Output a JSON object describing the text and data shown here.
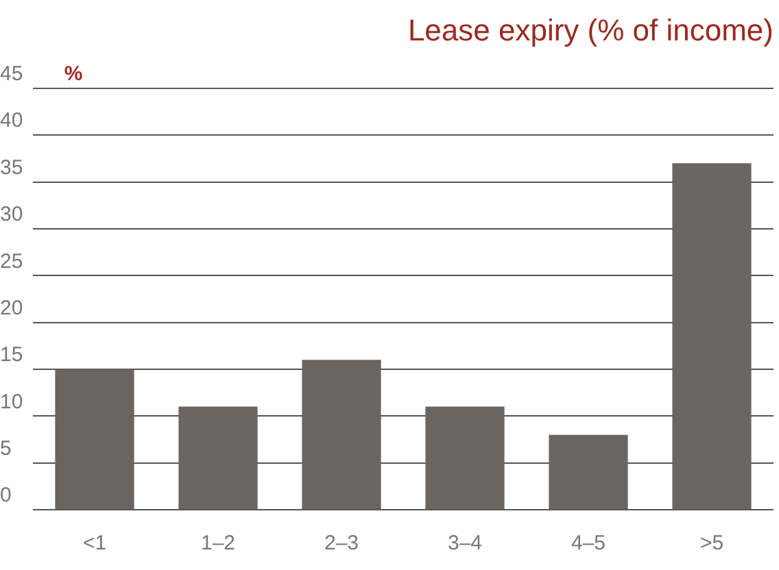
{
  "chart_data": {
    "type": "bar",
    "title": "Lease expiry (% of income)",
    "ylabel": "%",
    "categories": [
      "<1",
      "1–2",
      "2–3",
      "3–4",
      "4–5",
      ">5"
    ],
    "values": [
      15,
      11,
      16,
      11,
      8,
      37
    ],
    "color": "#6b6561",
    "ylim": [
      0,
      45
    ],
    "yticks": [
      0,
      5,
      10,
      15,
      20,
      25,
      30,
      35,
      40,
      45
    ],
    "grid": "y",
    "legend": false
  }
}
